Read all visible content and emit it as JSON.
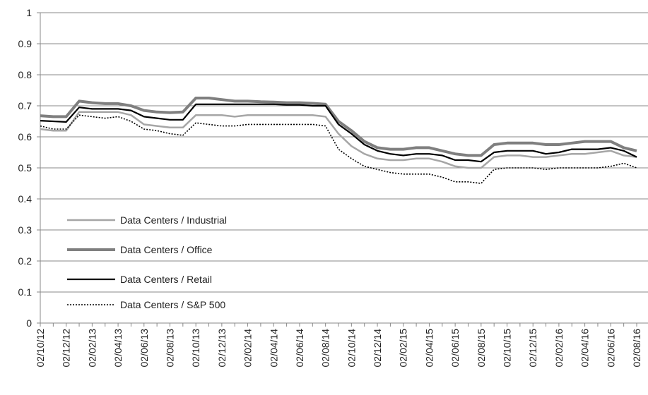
{
  "chart_data": {
    "type": "line",
    "categories": [
      "02/10/12",
      null,
      "02/12/12",
      null,
      "02/02/13",
      null,
      "02/04/13",
      null,
      "02/06/13",
      null,
      "02/08/13",
      null,
      "02/10/13",
      null,
      "02/12/13",
      null,
      "02/02/14",
      null,
      "02/04/14",
      null,
      "02/06/14",
      null,
      "02/08/14",
      null,
      "02/10/14",
      null,
      "02/12/14",
      null,
      "02/02/15",
      null,
      "02/04/15",
      null,
      "02/06/15",
      null,
      "02/08/15",
      null,
      "02/10/15",
      null,
      "02/12/15",
      null,
      "02/02/16",
      null,
      "02/04/16",
      null,
      "02/06/16",
      null,
      "02/08/16"
    ],
    "series": [
      {
        "name": "Data Centers / Industrial",
        "color": "#a6a6a6",
        "width": 2.5,
        "dash": "none",
        "values": [
          0.625,
          0.62,
          0.62,
          0.68,
          0.68,
          0.68,
          0.68,
          0.67,
          0.64,
          0.635,
          0.63,
          0.63,
          0.67,
          0.67,
          0.67,
          0.665,
          0.67,
          0.67,
          0.67,
          0.67,
          0.67,
          0.67,
          0.665,
          0.61,
          0.57,
          0.545,
          0.53,
          0.525,
          0.525,
          0.53,
          0.53,
          0.52,
          0.505,
          0.5,
          0.5,
          0.535,
          0.54,
          0.54,
          0.535,
          0.535,
          0.54,
          0.545,
          0.545,
          0.55,
          0.555,
          0.54,
          0.535
        ]
      },
      {
        "name": "Data Centers / Office",
        "color": "#7f7f7f",
        "width": 4,
        "dash": "none",
        "values": [
          0.668,
          0.665,
          0.665,
          0.715,
          0.71,
          0.707,
          0.707,
          0.7,
          0.685,
          0.68,
          0.678,
          0.68,
          0.725,
          0.725,
          0.72,
          0.715,
          0.715,
          0.713,
          0.712,
          0.71,
          0.71,
          0.708,
          0.705,
          0.65,
          0.62,
          0.585,
          0.565,
          0.56,
          0.56,
          0.565,
          0.565,
          0.555,
          0.545,
          0.54,
          0.54,
          0.575,
          0.58,
          0.58,
          0.58,
          0.575,
          0.575,
          0.58,
          0.585,
          0.585,
          0.585,
          0.565,
          0.555
        ]
      },
      {
        "name": "Data Centers / Retail",
        "color": "#000000",
        "width": 2.2,
        "dash": "none",
        "values": [
          0.652,
          0.65,
          0.648,
          0.695,
          0.69,
          0.69,
          0.69,
          0.685,
          0.665,
          0.66,
          0.655,
          0.655,
          0.705,
          0.705,
          0.705,
          0.705,
          0.705,
          0.705,
          0.705,
          0.703,
          0.703,
          0.7,
          0.7,
          0.64,
          0.61,
          0.575,
          0.555,
          0.545,
          0.54,
          0.545,
          0.545,
          0.54,
          0.525,
          0.525,
          0.52,
          0.55,
          0.555,
          0.555,
          0.555,
          0.545,
          0.55,
          0.56,
          0.56,
          0.56,
          0.565,
          0.555,
          0.535
        ]
      },
      {
        "name": "Data Centers / S&P 500",
        "color": "#000000",
        "width": 1.6,
        "dash": "2 2",
        "values": [
          0.635,
          0.625,
          0.625,
          0.67,
          0.665,
          0.66,
          0.665,
          0.65,
          0.625,
          0.62,
          0.61,
          0.605,
          0.645,
          0.64,
          0.635,
          0.635,
          0.64,
          0.64,
          0.64,
          0.64,
          0.64,
          0.64,
          0.635,
          0.56,
          0.53,
          0.505,
          0.495,
          0.485,
          0.48,
          0.48,
          0.48,
          0.47,
          0.455,
          0.455,
          0.45,
          0.495,
          0.5,
          0.5,
          0.5,
          0.495,
          0.5,
          0.5,
          0.5,
          0.5,
          0.505,
          0.515,
          0.5
        ]
      }
    ],
    "ylim": [
      0,
      1
    ],
    "yticks": [
      0,
      0.1,
      0.2,
      0.3,
      0.4,
      0.5,
      0.6,
      0.7,
      0.8,
      0.9,
      1
    ],
    "grid": true,
    "legend": "lower left"
  }
}
